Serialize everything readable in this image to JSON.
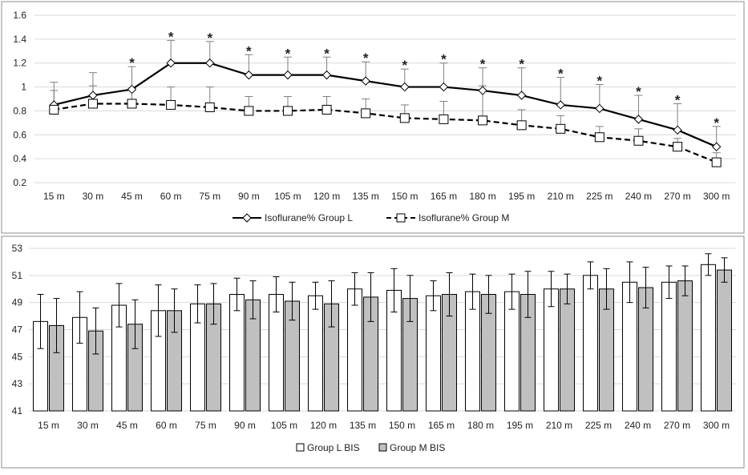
{
  "chart_data": [
    {
      "type": "line",
      "title": "",
      "xlabel": "",
      "ylabel": "",
      "categories": [
        "15 m",
        "30 m",
        "45 m",
        "60 m",
        "75 m",
        "90 m",
        "105 m",
        "120 m",
        "135 m",
        "150 m",
        "165 m",
        "180 m",
        "195 m",
        "210 m",
        "225 m",
        "240 m",
        "270 m",
        "300 m"
      ],
      "yticks": [
        "0.2",
        "0.4",
        "0.6",
        "0.8",
        "1",
        "1.2",
        "1.4",
        "1.6"
      ],
      "ylim": [
        0.2,
        1.6
      ],
      "grid": "horizontal",
      "legend_position": "bottom",
      "series": [
        {
          "name": "Isoflurane% Group L",
          "line_style": "solid",
          "marker": "diamond",
          "values": [
            0.85,
            0.93,
            0.98,
            1.2,
            1.2,
            1.1,
            1.1,
            1.1,
            1.05,
            1.0,
            1.0,
            0.97,
            0.93,
            0.85,
            0.82,
            0.73,
            0.64,
            0.5
          ],
          "error": [
            0.19,
            0.19,
            0.19,
            0.19,
            0.18,
            0.17,
            0.15,
            0.15,
            0.16,
            0.15,
            0.2,
            0.19,
            0.23,
            0.23,
            0.2,
            0.2,
            0.22,
            0.17
          ]
        },
        {
          "name": "Isoflurane% Group M",
          "line_style": "dashed",
          "marker": "square",
          "values": [
            0.81,
            0.86,
            0.86,
            0.85,
            0.83,
            0.8,
            0.8,
            0.81,
            0.78,
            0.74,
            0.73,
            0.72,
            0.68,
            0.65,
            0.58,
            0.55,
            0.5,
            0.37
          ],
          "error": [
            0.16,
            0.15,
            0.13,
            0.15,
            0.17,
            0.12,
            0.12,
            0.11,
            0.12,
            0.11,
            0.15,
            0.29,
            0.13,
            0.11,
            0.09,
            0.1,
            0.07,
            0.08
          ]
        }
      ],
      "annotations": [
        "",
        "",
        "*",
        "*",
        "*",
        "*",
        "*",
        "*",
        "*",
        "*",
        "*",
        "*",
        "*",
        "*",
        "*",
        "*",
        "*",
        "*"
      ]
    },
    {
      "type": "bar",
      "title": "",
      "xlabel": "",
      "ylabel": "",
      "categories": [
        "15 m",
        "30 m",
        "45 m",
        "60 m",
        "75 m",
        "90 m",
        "105 m",
        "120 m",
        "135 m",
        "150 m",
        "165 m",
        "180 m",
        "195 m",
        "210 m",
        "225 m",
        "240 m",
        "270 m",
        "300 m"
      ],
      "yticks": [
        "41",
        "43",
        "45",
        "47",
        "49",
        "51",
        "53"
      ],
      "ylim": [
        41,
        53
      ],
      "grid": "horizontal",
      "legend_position": "bottom",
      "series": [
        {
          "name": "Group L BIS",
          "fill": "#ffffff",
          "values": [
            47.6,
            47.9,
            48.8,
            48.4,
            48.9,
            49.6,
            49.6,
            49.5,
            50.0,
            49.9,
            49.5,
            49.8,
            49.8,
            50.0,
            51.0,
            50.5,
            50.5,
            51.8
          ],
          "error": [
            2.0,
            1.9,
            1.6,
            1.9,
            1.4,
            1.2,
            1.3,
            1.0,
            1.2,
            1.6,
            1.1,
            1.3,
            1.3,
            1.3,
            1.0,
            1.5,
            1.2,
            0.8
          ]
        },
        {
          "name": "Group M BIS",
          "fill": "#c0c0c0",
          "values": [
            47.3,
            46.9,
            47.4,
            48.4,
            48.9,
            49.2,
            49.1,
            48.9,
            49.4,
            49.3,
            49.6,
            49.6,
            49.6,
            50.0,
            50.0,
            50.1,
            50.6,
            51.4
          ],
          "error": [
            2.0,
            1.7,
            1.8,
            1.6,
            1.5,
            1.4,
            1.4,
            1.7,
            1.8,
            1.7,
            1.6,
            1.4,
            1.7,
            1.1,
            1.5,
            1.5,
            1.1,
            0.9
          ]
        }
      ]
    }
  ]
}
